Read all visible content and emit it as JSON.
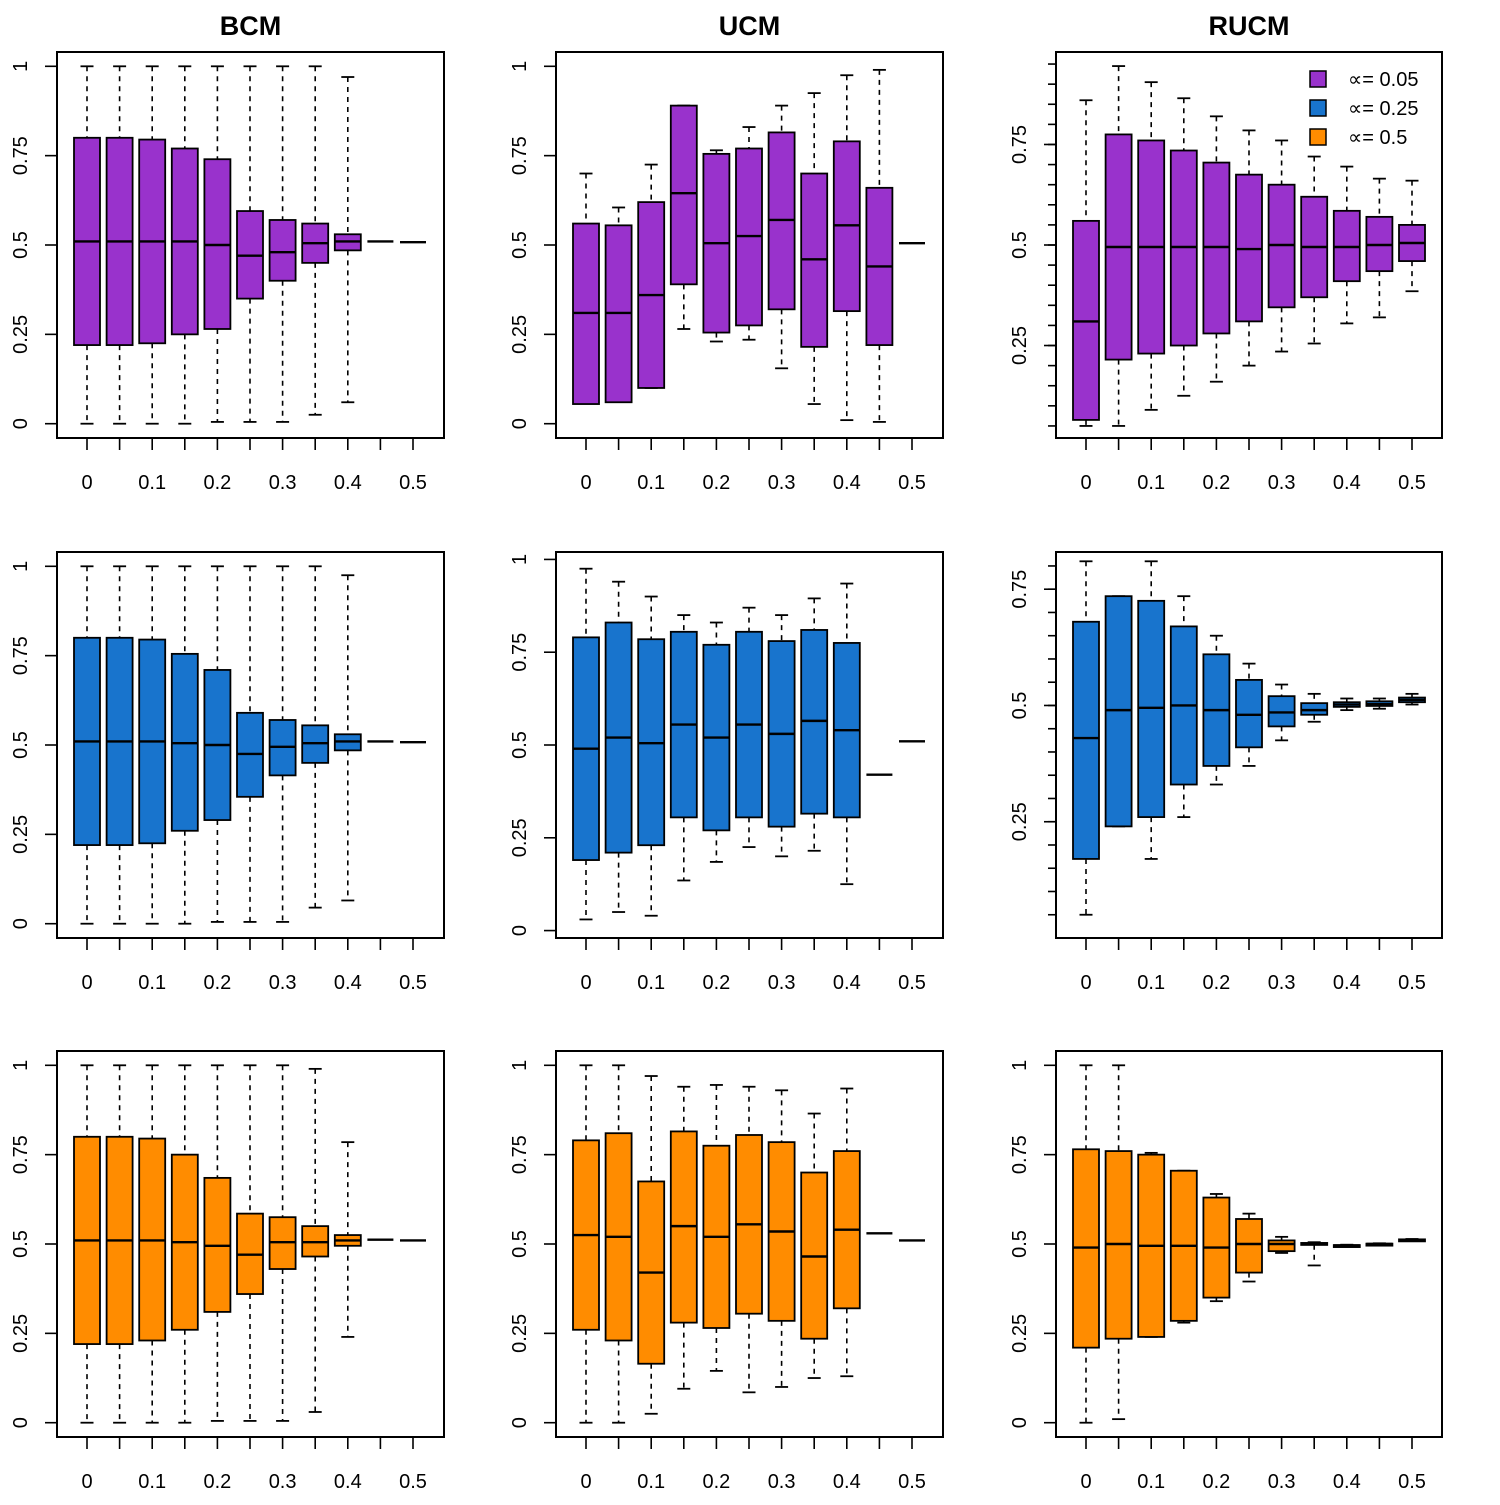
{
  "colors": {
    "purple": "#9932CC",
    "blue": "#1874CD",
    "orange": "#FF8C00"
  },
  "legend": {
    "placement": "top-right of RUCM top panel",
    "entries": [
      {
        "label": "∝= 0.05",
        "color": "#9932CC"
      },
      {
        "label": "∝= 0.25",
        "color": "#1874CD"
      },
      {
        "label": "∝= 0.5",
        "color": "#FF8C00"
      }
    ]
  },
  "chart_data": [
    {
      "type": "box",
      "title": "BCM",
      "series": "∝= 0.05",
      "color": "#9932CC",
      "ylim": [
        -0.04,
        1.04
      ],
      "yticks": [
        "0",
        "0.25",
        "0.5",
        "0.75",
        "1"
      ],
      "xticks": [
        "0",
        "0.1",
        "0.2",
        "0.3",
        "0.4",
        "0.5"
      ],
      "groups": [
        0,
        0.05,
        0.1,
        0.15,
        0.2,
        0.25,
        0.3,
        0.35,
        0.4,
        0.45,
        0.5
      ],
      "boxes": [
        [
          0.0,
          0.22,
          0.51,
          0.8,
          1.0
        ],
        [
          0.0,
          0.22,
          0.51,
          0.8,
          1.0
        ],
        [
          0.0,
          0.225,
          0.51,
          0.795,
          1.0
        ],
        [
          0.0,
          0.25,
          0.51,
          0.77,
          1.0
        ],
        [
          0.005,
          0.265,
          0.5,
          0.74,
          1.0
        ],
        [
          0.005,
          0.35,
          0.47,
          0.595,
          1.0
        ],
        [
          0.005,
          0.4,
          0.48,
          0.57,
          1.0
        ],
        [
          0.025,
          0.45,
          0.505,
          0.56,
          1.0
        ],
        [
          0.06,
          0.485,
          0.51,
          0.53,
          0.97
        ],
        [
          0.51,
          0.51,
          0.51,
          0.51,
          0.51
        ],
        [
          0.508,
          0.508,
          0.508,
          0.508,
          0.508
        ]
      ]
    },
    {
      "type": "box",
      "title": "UCM",
      "series": "∝= 0.05",
      "color": "#9932CC",
      "ylim": [
        -0.04,
        1.04
      ],
      "yticks": [
        "0",
        "0.25",
        "0.5",
        "0.75",
        "1"
      ],
      "xticks": [
        "0",
        "0.1",
        "0.2",
        "0.3",
        "0.4",
        "0.5"
      ],
      "groups": [
        0,
        0.05,
        0.1,
        0.15,
        0.2,
        0.25,
        0.3,
        0.35,
        0.4,
        0.45,
        0.5
      ],
      "boxes": [
        [
          0.07,
          0.055,
          0.31,
          0.56,
          0.7
        ],
        [
          0.07,
          0.06,
          0.31,
          0.555,
          0.605
        ],
        [
          0.1,
          0.1,
          0.36,
          0.62,
          0.725
        ],
        [
          0.265,
          0.39,
          0.645,
          0.89,
          0.89
        ],
        [
          0.23,
          0.255,
          0.505,
          0.755,
          0.765
        ],
        [
          0.235,
          0.275,
          0.525,
          0.77,
          0.83
        ],
        [
          0.155,
          0.32,
          0.57,
          0.815,
          0.89
        ],
        [
          0.055,
          0.215,
          0.46,
          0.7,
          0.925
        ],
        [
          0.01,
          0.315,
          0.555,
          0.79,
          0.975
        ],
        [
          0.005,
          0.22,
          0.44,
          0.66,
          0.99
        ],
        [
          0.505,
          0.505,
          0.505,
          0.505,
          0.505
        ]
      ]
    },
    {
      "type": "box",
      "title": "RUCM",
      "series": "∝= 0.05",
      "color": "#9932CC",
      "ylim": [
        0.02,
        0.98
      ],
      "yticks": [
        "0.25",
        "0.5",
        "0.75"
      ],
      "xticks": [
        "0",
        "0.1",
        "0.2",
        "0.3",
        "0.4",
        "0.5"
      ],
      "groups": [
        0,
        0.05,
        0.1,
        0.15,
        0.2,
        0.25,
        0.3,
        0.35,
        0.4,
        0.45,
        0.5
      ],
      "boxes": [
        [
          0.05,
          0.065,
          0.31,
          0.56,
          0.86
        ],
        [
          0.05,
          0.215,
          0.495,
          0.775,
          0.945
        ],
        [
          0.09,
          0.23,
          0.495,
          0.76,
          0.905
        ],
        [
          0.125,
          0.25,
          0.495,
          0.735,
          0.865
        ],
        [
          0.16,
          0.28,
          0.495,
          0.705,
          0.82
        ],
        [
          0.2,
          0.31,
          0.49,
          0.675,
          0.785
        ],
        [
          0.235,
          0.345,
          0.5,
          0.65,
          0.76
        ],
        [
          0.255,
          0.37,
          0.495,
          0.62,
          0.72
        ],
        [
          0.305,
          0.41,
          0.495,
          0.585,
          0.695
        ],
        [
          0.32,
          0.435,
          0.5,
          0.57,
          0.665
        ],
        [
          0.385,
          0.46,
          0.505,
          0.55,
          0.66
        ]
      ]
    },
    {
      "type": "box",
      "title": "",
      "series": "∝= 0.25",
      "color": "#1874CD",
      "ylim": [
        -0.04,
        1.04
      ],
      "yticks": [
        "0",
        "0.25",
        "0.5",
        "0.75",
        "1"
      ],
      "xticks": [
        "0",
        "0.1",
        "0.2",
        "0.3",
        "0.4",
        "0.5"
      ],
      "groups": [
        0,
        0.05,
        0.1,
        0.15,
        0.2,
        0.25,
        0.3,
        0.35,
        0.4,
        0.45,
        0.5
      ],
      "boxes": [
        [
          0.0,
          0.22,
          0.51,
          0.8,
          1.0
        ],
        [
          0.0,
          0.22,
          0.51,
          0.8,
          1.0
        ],
        [
          0.0,
          0.225,
          0.51,
          0.795,
          1.0
        ],
        [
          0.0,
          0.26,
          0.505,
          0.755,
          1.0
        ],
        [
          0.005,
          0.29,
          0.5,
          0.71,
          1.0
        ],
        [
          0.005,
          0.355,
          0.475,
          0.59,
          1.0
        ],
        [
          0.005,
          0.415,
          0.495,
          0.57,
          1.0
        ],
        [
          0.045,
          0.45,
          0.505,
          0.555,
          1.0
        ],
        [
          0.065,
          0.485,
          0.51,
          0.53,
          0.975
        ],
        [
          0.51,
          0.51,
          0.51,
          0.51,
          0.51
        ],
        [
          0.508,
          0.508,
          0.508,
          0.508,
          0.508
        ]
      ]
    },
    {
      "type": "box",
      "title": "",
      "series": "∝= 0.25",
      "color": "#1874CD",
      "ylim": [
        -0.02,
        1.02
      ],
      "yticks": [
        "0",
        "0.25",
        "0.5",
        "0.75",
        "1"
      ],
      "xticks": [
        "0",
        "0.1",
        "0.2",
        "0.3",
        "0.4",
        "0.5"
      ],
      "groups": [
        0,
        0.05,
        0.1,
        0.15,
        0.2,
        0.25,
        0.3,
        0.35,
        0.4,
        0.45,
        0.5
      ],
      "boxes": [
        [
          0.03,
          0.19,
          0.49,
          0.79,
          0.975
        ],
        [
          0.05,
          0.21,
          0.52,
          0.83,
          0.94
        ],
        [
          0.04,
          0.23,
          0.505,
          0.785,
          0.9
        ],
        [
          0.135,
          0.305,
          0.555,
          0.805,
          0.85
        ],
        [
          0.185,
          0.27,
          0.52,
          0.77,
          0.83
        ],
        [
          0.225,
          0.305,
          0.555,
          0.805,
          0.87
        ],
        [
          0.2,
          0.28,
          0.53,
          0.78,
          0.85
        ],
        [
          0.215,
          0.315,
          0.565,
          0.81,
          0.895
        ],
        [
          0.125,
          0.305,
          0.54,
          0.775,
          0.935
        ],
        [
          0.42,
          0.42,
          0.42,
          0.42,
          0.42
        ],
        [
          0.51,
          0.51,
          0.51,
          0.51,
          0.51
        ]
      ]
    },
    {
      "type": "box",
      "title": "",
      "series": "∝= 0.25",
      "color": "#1874CD",
      "ylim": [
        0.0,
        0.83
      ],
      "yticks": [
        "0.25",
        "0.5",
        "0.75"
      ],
      "xticks": [
        "0",
        "0.1",
        "0.2",
        "0.3",
        "0.4",
        "0.5"
      ],
      "groups": [
        0,
        0.05,
        0.1,
        0.15,
        0.2,
        0.25,
        0.3,
        0.35,
        0.4,
        0.45,
        0.5
      ],
      "boxes": [
        [
          0.05,
          0.17,
          0.43,
          0.68,
          0.81
        ],
        [
          0.24,
          0.24,
          0.49,
          0.735,
          0.735
        ],
        [
          0.17,
          0.26,
          0.495,
          0.725,
          0.81
        ],
        [
          0.26,
          0.33,
          0.5,
          0.67,
          0.735
        ],
        [
          0.33,
          0.37,
          0.49,
          0.61,
          0.65
        ],
        [
          0.37,
          0.41,
          0.48,
          0.555,
          0.59
        ],
        [
          0.425,
          0.455,
          0.485,
          0.52,
          0.545
        ],
        [
          0.465,
          0.48,
          0.49,
          0.505,
          0.525
        ],
        [
          0.49,
          0.497,
          0.502,
          0.507,
          0.515
        ],
        [
          0.493,
          0.499,
          0.503,
          0.509,
          0.515
        ],
        [
          0.502,
          0.507,
          0.512,
          0.517,
          0.525
        ]
      ]
    },
    {
      "type": "box",
      "title": "",
      "series": "∝= 0.5",
      "color": "#FF8C00",
      "ylim": [
        -0.04,
        1.04
      ],
      "yticks": [
        "0",
        "0.25",
        "0.5",
        "0.75",
        "1"
      ],
      "xticks": [
        "0",
        "0.1",
        "0.2",
        "0.3",
        "0.4",
        "0.5"
      ],
      "groups": [
        0,
        0.05,
        0.1,
        0.15,
        0.2,
        0.25,
        0.3,
        0.35,
        0.4,
        0.45,
        0.5
      ],
      "boxes": [
        [
          0.0,
          0.22,
          0.51,
          0.8,
          1.0
        ],
        [
          0.0,
          0.22,
          0.51,
          0.8,
          1.0
        ],
        [
          0.0,
          0.23,
          0.51,
          0.795,
          1.0
        ],
        [
          0.0,
          0.26,
          0.505,
          0.75,
          1.0
        ],
        [
          0.005,
          0.31,
          0.495,
          0.685,
          1.0
        ],
        [
          0.005,
          0.36,
          0.47,
          0.585,
          1.0
        ],
        [
          0.005,
          0.43,
          0.505,
          0.575,
          1.0
        ],
        [
          0.03,
          0.465,
          0.505,
          0.55,
          0.99
        ],
        [
          0.24,
          0.495,
          0.51,
          0.525,
          0.785
        ],
        [
          0.512,
          0.512,
          0.512,
          0.512,
          0.512
        ],
        [
          0.51,
          0.51,
          0.51,
          0.51,
          0.51
        ]
      ]
    },
    {
      "type": "box",
      "title": "",
      "series": "∝= 0.5",
      "color": "#FF8C00",
      "ylim": [
        -0.04,
        1.04
      ],
      "yticks": [
        "0",
        "0.25",
        "0.5",
        "0.75",
        "1"
      ],
      "xticks": [
        "0",
        "0.1",
        "0.2",
        "0.3",
        "0.4",
        "0.5"
      ],
      "groups": [
        0,
        0.05,
        0.1,
        0.15,
        0.2,
        0.25,
        0.3,
        0.35,
        0.4,
        0.45,
        0.5
      ],
      "boxes": [
        [
          0.0,
          0.26,
          0.525,
          0.79,
          1.0
        ],
        [
          0.0,
          0.23,
          0.52,
          0.81,
          1.0
        ],
        [
          0.025,
          0.165,
          0.42,
          0.675,
          0.97
        ],
        [
          0.095,
          0.28,
          0.55,
          0.815,
          0.94
        ],
        [
          0.145,
          0.265,
          0.52,
          0.775,
          0.945
        ],
        [
          0.085,
          0.305,
          0.555,
          0.805,
          0.94
        ],
        [
          0.1,
          0.285,
          0.535,
          0.785,
          0.93
        ],
        [
          0.125,
          0.235,
          0.465,
          0.7,
          0.865
        ],
        [
          0.13,
          0.32,
          0.54,
          0.76,
          0.935
        ],
        [
          0.53,
          0.53,
          0.53,
          0.53,
          0.53
        ],
        [
          0.51,
          0.51,
          0.51,
          0.51,
          0.51
        ]
      ]
    },
    {
      "type": "box",
      "title": "",
      "series": "∝= 0.5",
      "color": "#FF8C00",
      "ylim": [
        -0.04,
        1.04
      ],
      "yticks": [
        "0",
        "0.25",
        "0.5",
        "0.75",
        "1"
      ],
      "xticks": [
        "0",
        "0.1",
        "0.2",
        "0.3",
        "0.4",
        "0.5"
      ],
      "groups": [
        0,
        0.05,
        0.1,
        0.15,
        0.2,
        0.25,
        0.3,
        0.35,
        0.4,
        0.45,
        0.5
      ],
      "boxes": [
        [
          0.0,
          0.21,
          0.49,
          0.765,
          1.0
        ],
        [
          0.01,
          0.235,
          0.5,
          0.76,
          1.0
        ],
        [
          0.24,
          0.24,
          0.495,
          0.75,
          0.755
        ],
        [
          0.28,
          0.285,
          0.495,
          0.705,
          0.705
        ],
        [
          0.34,
          0.35,
          0.49,
          0.63,
          0.64
        ],
        [
          0.395,
          0.42,
          0.5,
          0.57,
          0.585
        ],
        [
          0.475,
          0.48,
          0.5,
          0.51,
          0.52
        ],
        [
          0.44,
          0.498,
          0.5,
          0.503,
          0.505
        ],
        [
          0.494,
          0.495,
          0.496,
          0.497,
          0.498
        ],
        [
          0.498,
          0.499,
          0.5,
          0.501,
          0.502
        ],
        [
          0.51,
          0.511,
          0.512,
          0.513,
          0.514
        ]
      ]
    }
  ]
}
